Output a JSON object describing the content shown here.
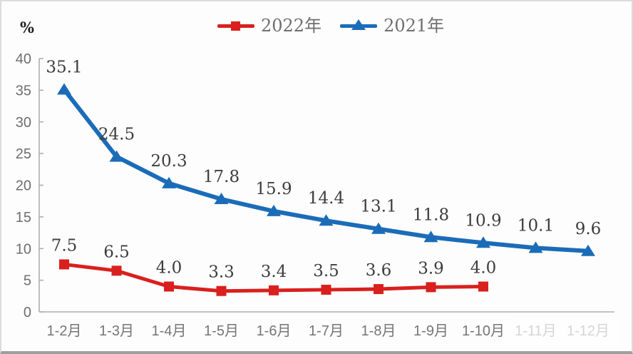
{
  "chart_data": {
    "type": "line",
    "title": "",
    "unit_label": "%",
    "categories": [
      "1-2月",
      "1-3月",
      "1-4月",
      "1-5月",
      "1-6月",
      "1-7月",
      "1-8月",
      "1-9月",
      "1-10月",
      "1-11月",
      "1-12月"
    ],
    "series": [
      {
        "name": "2022年",
        "color": "#d9201e",
        "marker": "square",
        "values": [
          7.5,
          6.5,
          4.0,
          3.3,
          3.4,
          3.5,
          3.6,
          3.9,
          4.0
        ]
      },
      {
        "name": "2021年",
        "color": "#1b6cb8",
        "marker": "triangle",
        "values": [
          35.1,
          24.5,
          20.3,
          17.8,
          15.9,
          14.4,
          13.1,
          11.8,
          10.9,
          10.1,
          9.6
        ]
      }
    ],
    "xlabel": "",
    "ylabel": "%",
    "ylim": [
      0,
      40
    ],
    "yticks": [
      0,
      5,
      10,
      15,
      20,
      25,
      30,
      35,
      40
    ],
    "grid": false,
    "legend_position": "top-center",
    "value_labels": true,
    "faded_tick_indices": [
      9,
      10
    ]
  },
  "colors": {
    "axis_line": "#aeaeae",
    "tick_text": "#6e6e6e",
    "x_tick_text": "#757575",
    "value_label_text": "#3d3d3d",
    "background": "#fdfdfd"
  }
}
